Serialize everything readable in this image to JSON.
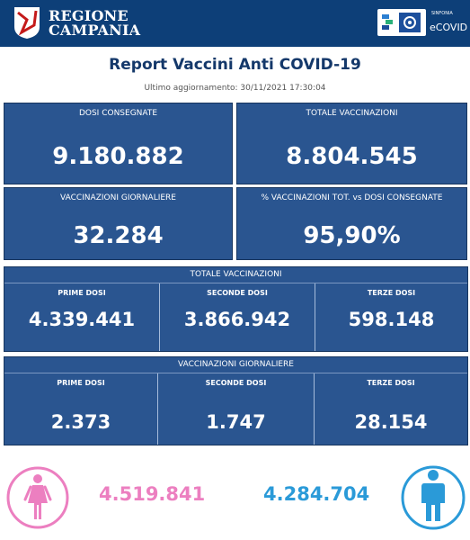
{
  "header": {
    "region_line1": "REGIONE",
    "region_line2": "CAMPANIA",
    "sinfonia": "SINFONIA",
    "ecovid": "eCOVID"
  },
  "title": "Report Vaccini Anti COVID-19",
  "updated": "Ultimo aggiornamento: 30/11/2021  17:30:04",
  "cards": {
    "dosi_consegnate": {
      "label": "DOSI  CONSEGNATE",
      "value": "9.180.882"
    },
    "totale_vaccinazioni": {
      "label": "TOTALE VACCINAZIONI",
      "value": "8.804.545"
    },
    "vaccinazioni_giornaliere": {
      "label": "VACCINAZIONI GIORNALIERE",
      "value": "32.284"
    },
    "percentuale": {
      "label": "% VACCINAZIONI TOT. vs DOSI CONSEGNATE",
      "value": "95,90%"
    }
  },
  "totale_panel": {
    "title": "TOTALE VACCINAZIONI",
    "cells": [
      {
        "label": "PRIME DOSI",
        "value": "4.339.441"
      },
      {
        "label": "SECONDE DOSI",
        "value": "3.866.942"
      },
      {
        "label": "TERZE DOSI",
        "value": "598.148"
      }
    ]
  },
  "giornaliere_panel": {
    "title": "VACCINAZIONI GIORNALIERE",
    "cells": [
      {
        "label": "PRIME DOSI",
        "value": "2.373"
      },
      {
        "label": "SECONDE DOSI",
        "value": "1.747"
      },
      {
        "label": "TERZE DOSI",
        "value": "28.154"
      }
    ]
  },
  "gender": {
    "female_value": "4.519.841",
    "male_value": "4.284.704",
    "female_icon": "female-person-icon",
    "male_icon": "male-person-icon",
    "female_color": "#ec7fc0",
    "male_color": "#2a9ad8"
  },
  "colors": {
    "header": "#0d3f78",
    "card": "#2a5590",
    "title": "#14386a"
  }
}
